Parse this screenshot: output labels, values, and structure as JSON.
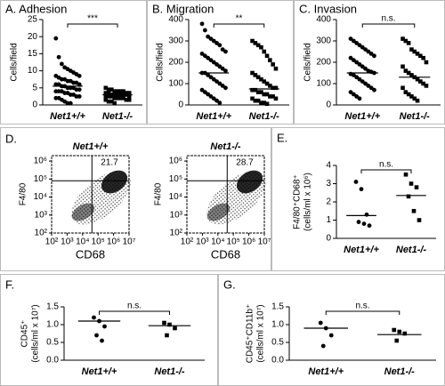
{
  "chart_data": [
    {
      "type": "dotplot",
      "title": "A. Adhesion",
      "ylabel": [
        "Cells/field"
      ],
      "categories": [
        "Net1+/+",
        "Net1-/-"
      ],
      "markers": [
        "circle",
        "square"
      ],
      "color": "#000000",
      "values": [
        [
          19.5,
          14,
          12,
          11,
          10.5,
          10,
          9.5,
          9,
          8.5,
          8.5,
          8,
          7.5,
          7.5,
          7,
          7,
          6.5,
          6.5,
          6,
          6,
          6,
          5.5,
          5.5,
          5,
          5,
          5,
          4.5,
          4.5,
          4,
          4,
          4,
          3.5,
          3.5,
          3,
          3,
          2.5,
          2.5,
          2,
          2,
          1.5,
          1,
          0.5,
          0.5
        ],
        [
          5,
          4.5,
          4.5,
          4,
          4,
          4,
          4,
          3.5,
          3.5,
          3.5,
          3.5,
          3,
          3,
          3,
          3,
          3,
          3,
          2.5,
          2.5,
          2.5,
          2.5,
          2,
          2,
          2,
          2,
          1.5,
          1.5,
          1.5,
          1,
          1,
          0.5
        ]
      ],
      "medians": [
        5.5,
        3
      ],
      "annotation": "***",
      "ylim": [
        0,
        25
      ],
      "yticks": [
        0,
        5,
        10,
        15,
        20,
        25
      ]
    },
    {
      "type": "dotplot",
      "title": "B. Migration",
      "ylabel": [
        "Cells/field"
      ],
      "categories": [
        "Net1+/+",
        "Net1-/-"
      ],
      "markers": [
        "circle",
        "square"
      ],
      "color": "#000000",
      "values": [
        [
          380,
          350,
          320,
          310,
          300,
          290,
          280,
          260,
          250,
          240,
          230,
          220,
          210,
          200,
          190,
          180,
          170,
          160,
          150,
          150,
          140,
          130,
          120,
          110,
          100,
          90,
          80,
          70,
          60,
          50,
          40,
          30,
          20,
          10
        ],
        [
          300,
          290,
          280,
          270,
          250,
          230,
          210,
          190,
          170,
          150,
          140,
          130,
          120,
          110,
          100,
          90,
          80,
          80,
          70,
          70,
          60,
          60,
          50,
          50,
          40,
          40,
          30,
          30,
          20,
          20,
          10,
          10,
          5
        ]
      ],
      "medians": [
        150,
        75
      ],
      "annotation": "**",
      "ylim": [
        0,
        400
      ],
      "yticks": [
        0,
        100,
        200,
        300,
        400
      ]
    },
    {
      "type": "dotplot",
      "title": "C. Invasion",
      "ylabel": [
        "Cells/field"
      ],
      "categories": [
        "Net1+/+",
        "Net1-/-"
      ],
      "markers": [
        "circle",
        "square"
      ],
      "color": "#000000",
      "values": [
        [
          310,
          300,
          290,
          280,
          270,
          260,
          250,
          240,
          230,
          220,
          210,
          200,
          190,
          180,
          170,
          160,
          155,
          150,
          145,
          140,
          130,
          120,
          110,
          100,
          90,
          80,
          70,
          60,
          50,
          40,
          30
        ],
        [
          310,
          300,
          290,
          260,
          250,
          240,
          230,
          220,
          200,
          180,
          160,
          150,
          140,
          130,
          120,
          110,
          100,
          90,
          80,
          60,
          50,
          40,
          30,
          20
        ]
      ],
      "medians": [
        150,
        130
      ],
      "annotation": "n.s.",
      "ylim": [
        0,
        400
      ],
      "yticks": [
        0,
        100,
        200,
        300,
        400
      ]
    },
    {
      "type": "flow",
      "panel_label": "D.",
      "title": "Net1+/+",
      "xlabel": "CD68",
      "ylabel": [
        "F4/80"
      ],
      "log_scale": true,
      "percent": 21.7,
      "gate": [
        40000,
        80000
      ],
      "xlim": [
        100,
        10000000
      ],
      "ylim": [
        100,
        2000000
      ],
      "xticks": [
        {
          "value": 100,
          "label": "10²"
        },
        {
          "value": 1000,
          "label": "10³"
        },
        {
          "value": 10000,
          "label": "10⁴"
        },
        {
          "value": 100000,
          "label": "10⁵"
        },
        {
          "value": 1000000,
          "label": "10⁶"
        },
        {
          "value": 10000000,
          "label": "10⁷"
        }
      ],
      "yticks": [
        {
          "value": 100,
          "label": "10²"
        },
        {
          "value": 1000,
          "label": "10³"
        },
        {
          "value": 10000,
          "label": "10⁴"
        },
        {
          "value": 100000,
          "label": "10⁵"
        },
        {
          "value": 1000000,
          "label": "10⁶"
        }
      ]
    },
    {
      "type": "flow",
      "title": "Net1-/-",
      "xlabel": "CD68",
      "ylabel": [
        "F4/80"
      ],
      "log_scale": true,
      "percent": 28.7,
      "gate": [
        40000,
        80000
      ],
      "xlim": [
        100,
        10000000
      ],
      "ylim": [
        100,
        2000000
      ],
      "xticks": [
        {
          "value": 100,
          "label": "10²"
        },
        {
          "value": 1000,
          "label": "10³"
        },
        {
          "value": 10000,
          "label": "10⁴"
        },
        {
          "value": 100000,
          "label": "10⁵"
        },
        {
          "value": 1000000,
          "label": "10⁶"
        },
        {
          "value": 10000000,
          "label": "10⁷"
        }
      ],
      "yticks": [
        {
          "value": 100,
          "label": "10²"
        },
        {
          "value": 1000,
          "label": "10³"
        },
        {
          "value": 10000,
          "label": "10⁴"
        },
        {
          "value": 100000,
          "label": "10⁵"
        },
        {
          "value": 1000000,
          "label": "10⁶"
        }
      ]
    },
    {
      "type": "dotplot",
      "panel_label": "E.",
      "ylabel": [
        "F4/80⁺CD68⁺",
        "(cells/ml x 10⁶)"
      ],
      "categories": [
        "Net1+/+",
        "Net1-/-"
      ],
      "markers": [
        "circle",
        "square"
      ],
      "color": "#000000",
      "values": [
        [
          3.1,
          2.7,
          1.3,
          0.9,
          0.8,
          0.7
        ],
        [
          3.5,
          3.0,
          2.8,
          2.3,
          1.5,
          1.0
        ]
      ],
      "medians": [
        1.25,
        2.35
      ],
      "annotation": "n.s.",
      "ylim": [
        0,
        4
      ],
      "yticks": [
        0,
        1,
        2,
        3,
        4
      ]
    },
    {
      "type": "dotplot",
      "panel_label": "F.",
      "ylabel": [
        "CD45⁺",
        "(cells/ml x 10⁷)"
      ],
      "categories": [
        "Net1+/+",
        "Net1-/-"
      ],
      "markers": [
        "circle",
        "square"
      ],
      "color": "#000000",
      "values": [
        [
          1.2,
          1.1,
          0.95,
          0.7,
          0.55
        ],
        [
          1.05,
          1.0,
          0.9,
          0.7
        ]
      ],
      "medians": [
        1.1,
        0.97
      ],
      "annotation": "n.s.",
      "ylim": [
        0,
        1.5
      ],
      "yticks": [
        {
          "value": 0,
          "label": "0.0"
        },
        0.5,
        {
          "value": 1,
          "label": "1.0"
        },
        1.5
      ]
    },
    {
      "type": "dotplot",
      "panel_label": "G.",
      "ylabel": [
        "CD45⁺CD11b⁺",
        "(cells/ml x 10⁷)"
      ],
      "categories": [
        "Net1+/+",
        "Net1-/-"
      ],
      "markers": [
        "circle",
        "square"
      ],
      "color": "#000000",
      "values": [
        [
          1.05,
          0.9,
          0.7,
          0.4
        ],
        [
          0.85,
          0.8,
          0.75,
          0.55
        ]
      ],
      "medians": [
        0.9,
        0.72
      ],
      "annotation": "n.s.",
      "ylim": [
        0,
        1.5
      ],
      "yticks": [
        {
          "value": 0,
          "label": "0.0"
        },
        0.5,
        {
          "value": 1,
          "label": "1.0"
        },
        1.5
      ]
    }
  ]
}
